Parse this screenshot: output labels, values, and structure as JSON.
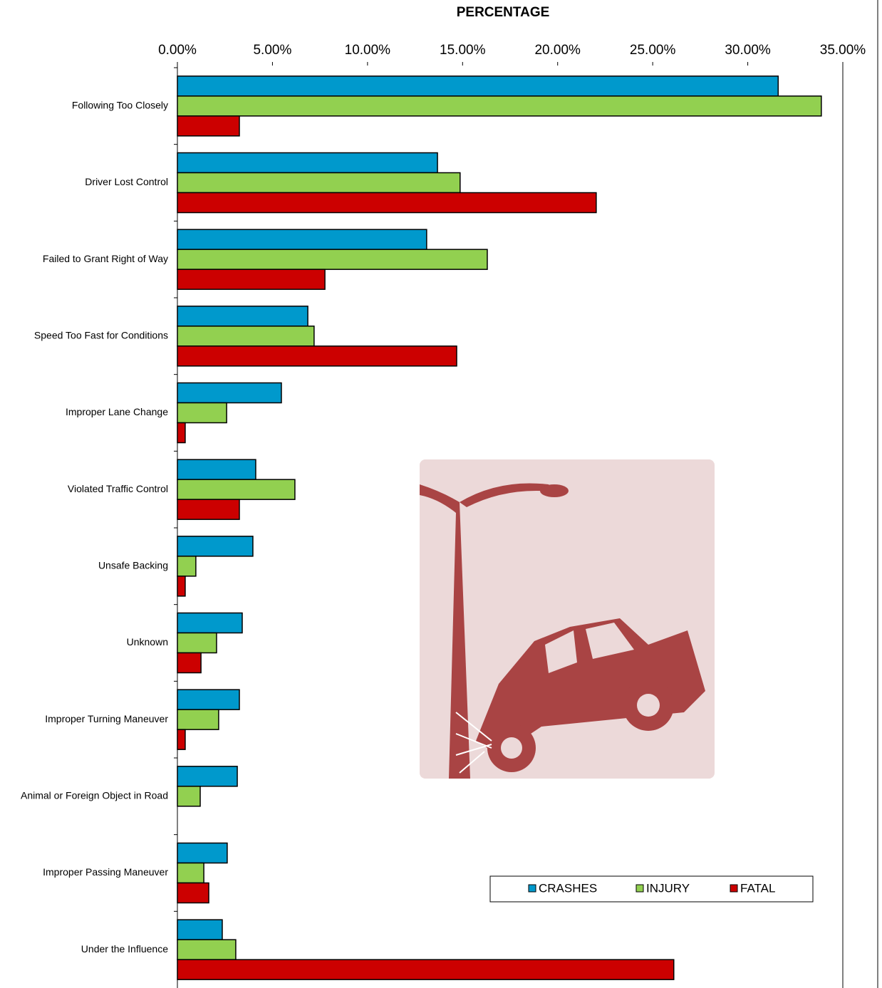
{
  "chart_data": {
    "type": "barh",
    "title": "PERCENTAGE",
    "categories": [
      "Following Too Closely",
      "Driver Lost Control",
      "Failed to Grant Right of Way",
      "Speed Too Fast for Conditions",
      "Improper Lane Change",
      "Violated Traffic Control",
      "Unsafe Backing",
      "Unknown",
      "Improper Turning Maneuver",
      "Animal or Foreign Object in Road",
      "Improper Passing Maneuver",
      "Under the Influence"
    ],
    "series": [
      {
        "name": "CRASHES",
        "color": "#0099cc",
        "values": [
          31.6,
          13.68,
          13.11,
          6.86,
          5.47,
          4.12,
          3.97,
          3.41,
          3.26,
          3.15,
          2.62,
          2.36
        ]
      },
      {
        "name": "INJURY",
        "color": "#92d050",
        "values": [
          33.87,
          14.87,
          16.3,
          7.19,
          2.59,
          6.18,
          0.97,
          2.06,
          2.17,
          1.2,
          1.39,
          3.07
        ]
      },
      {
        "name": "FATAL",
        "color": "#cc0000",
        "values": [
          3.26,
          22.03,
          7.76,
          14.69,
          0.41,
          3.26,
          0.41,
          1.24,
          0.41,
          0,
          1.65,
          26.11
        ]
      }
    ],
    "xlim": [
      0,
      35
    ],
    "xticks": [
      {
        "value": 0,
        "label": "0.00%"
      },
      {
        "value": 5,
        "label": "5.00%"
      },
      {
        "value": 10,
        "label": "10.00%"
      },
      {
        "value": 15,
        "label": "15.00%"
      },
      {
        "value": 20,
        "label": "20.00%"
      },
      {
        "value": 25,
        "label": "25.00%"
      },
      {
        "value": 30,
        "label": "30.00%"
      },
      {
        "value": 35,
        "label": "35.00%"
      }
    ],
    "legend": "lower right"
  }
}
